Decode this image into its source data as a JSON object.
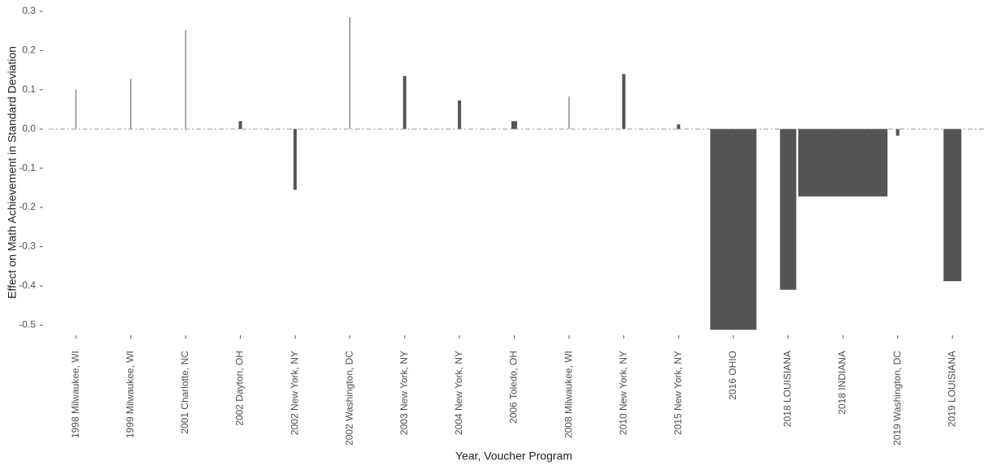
{
  "chart_data": {
    "type": "bar",
    "x_label": "Year, Voucher Program",
    "y_label": "Effect on Math Achievement in Standard Deviation",
    "categories": [
      "1998 Milwaukee, WI",
      "1999 Milwaukee, WI",
      "2001 Charlotte, NC",
      "2002 Dayton, OH",
      "2002 New York, NY",
      "2002 Washington, DC",
      "2003 New York, NY",
      "2004 New York, NY",
      "2006 Toledo, OH",
      "2008 Milwaukee, WI",
      "2010 New York, NY",
      "2015 New York, NY",
      "2016 OHIO",
      "2018 LOUISIANA",
      "2018 INDIANA",
      "2019 Washington, DC",
      "2019 LOUISIANA"
    ],
    "values": [
      0.101,
      0.128,
      0.252,
      0.02,
      -0.155,
      0.285,
      0.135,
      0.073,
      0.02,
      0.083,
      0.14,
      0.012,
      -0.512,
      -0.41,
      -0.172,
      -0.017,
      -0.388
    ],
    "widths": [
      1,
      1,
      1,
      4,
      4,
      1,
      4,
      4,
      7,
      1,
      4,
      4,
      57,
      20,
      110,
      4,
      22
    ],
    "color": "#545454",
    "ylim": [
      -0.52,
      0.3
    ],
    "yticks": [
      0.3,
      0.2,
      0.1,
      {
        "value": 0,
        "label": "0.0"
      },
      -0.1,
      -0.2,
      -0.3,
      -0.4,
      -0.5
    ],
    "zero_line": true
  }
}
